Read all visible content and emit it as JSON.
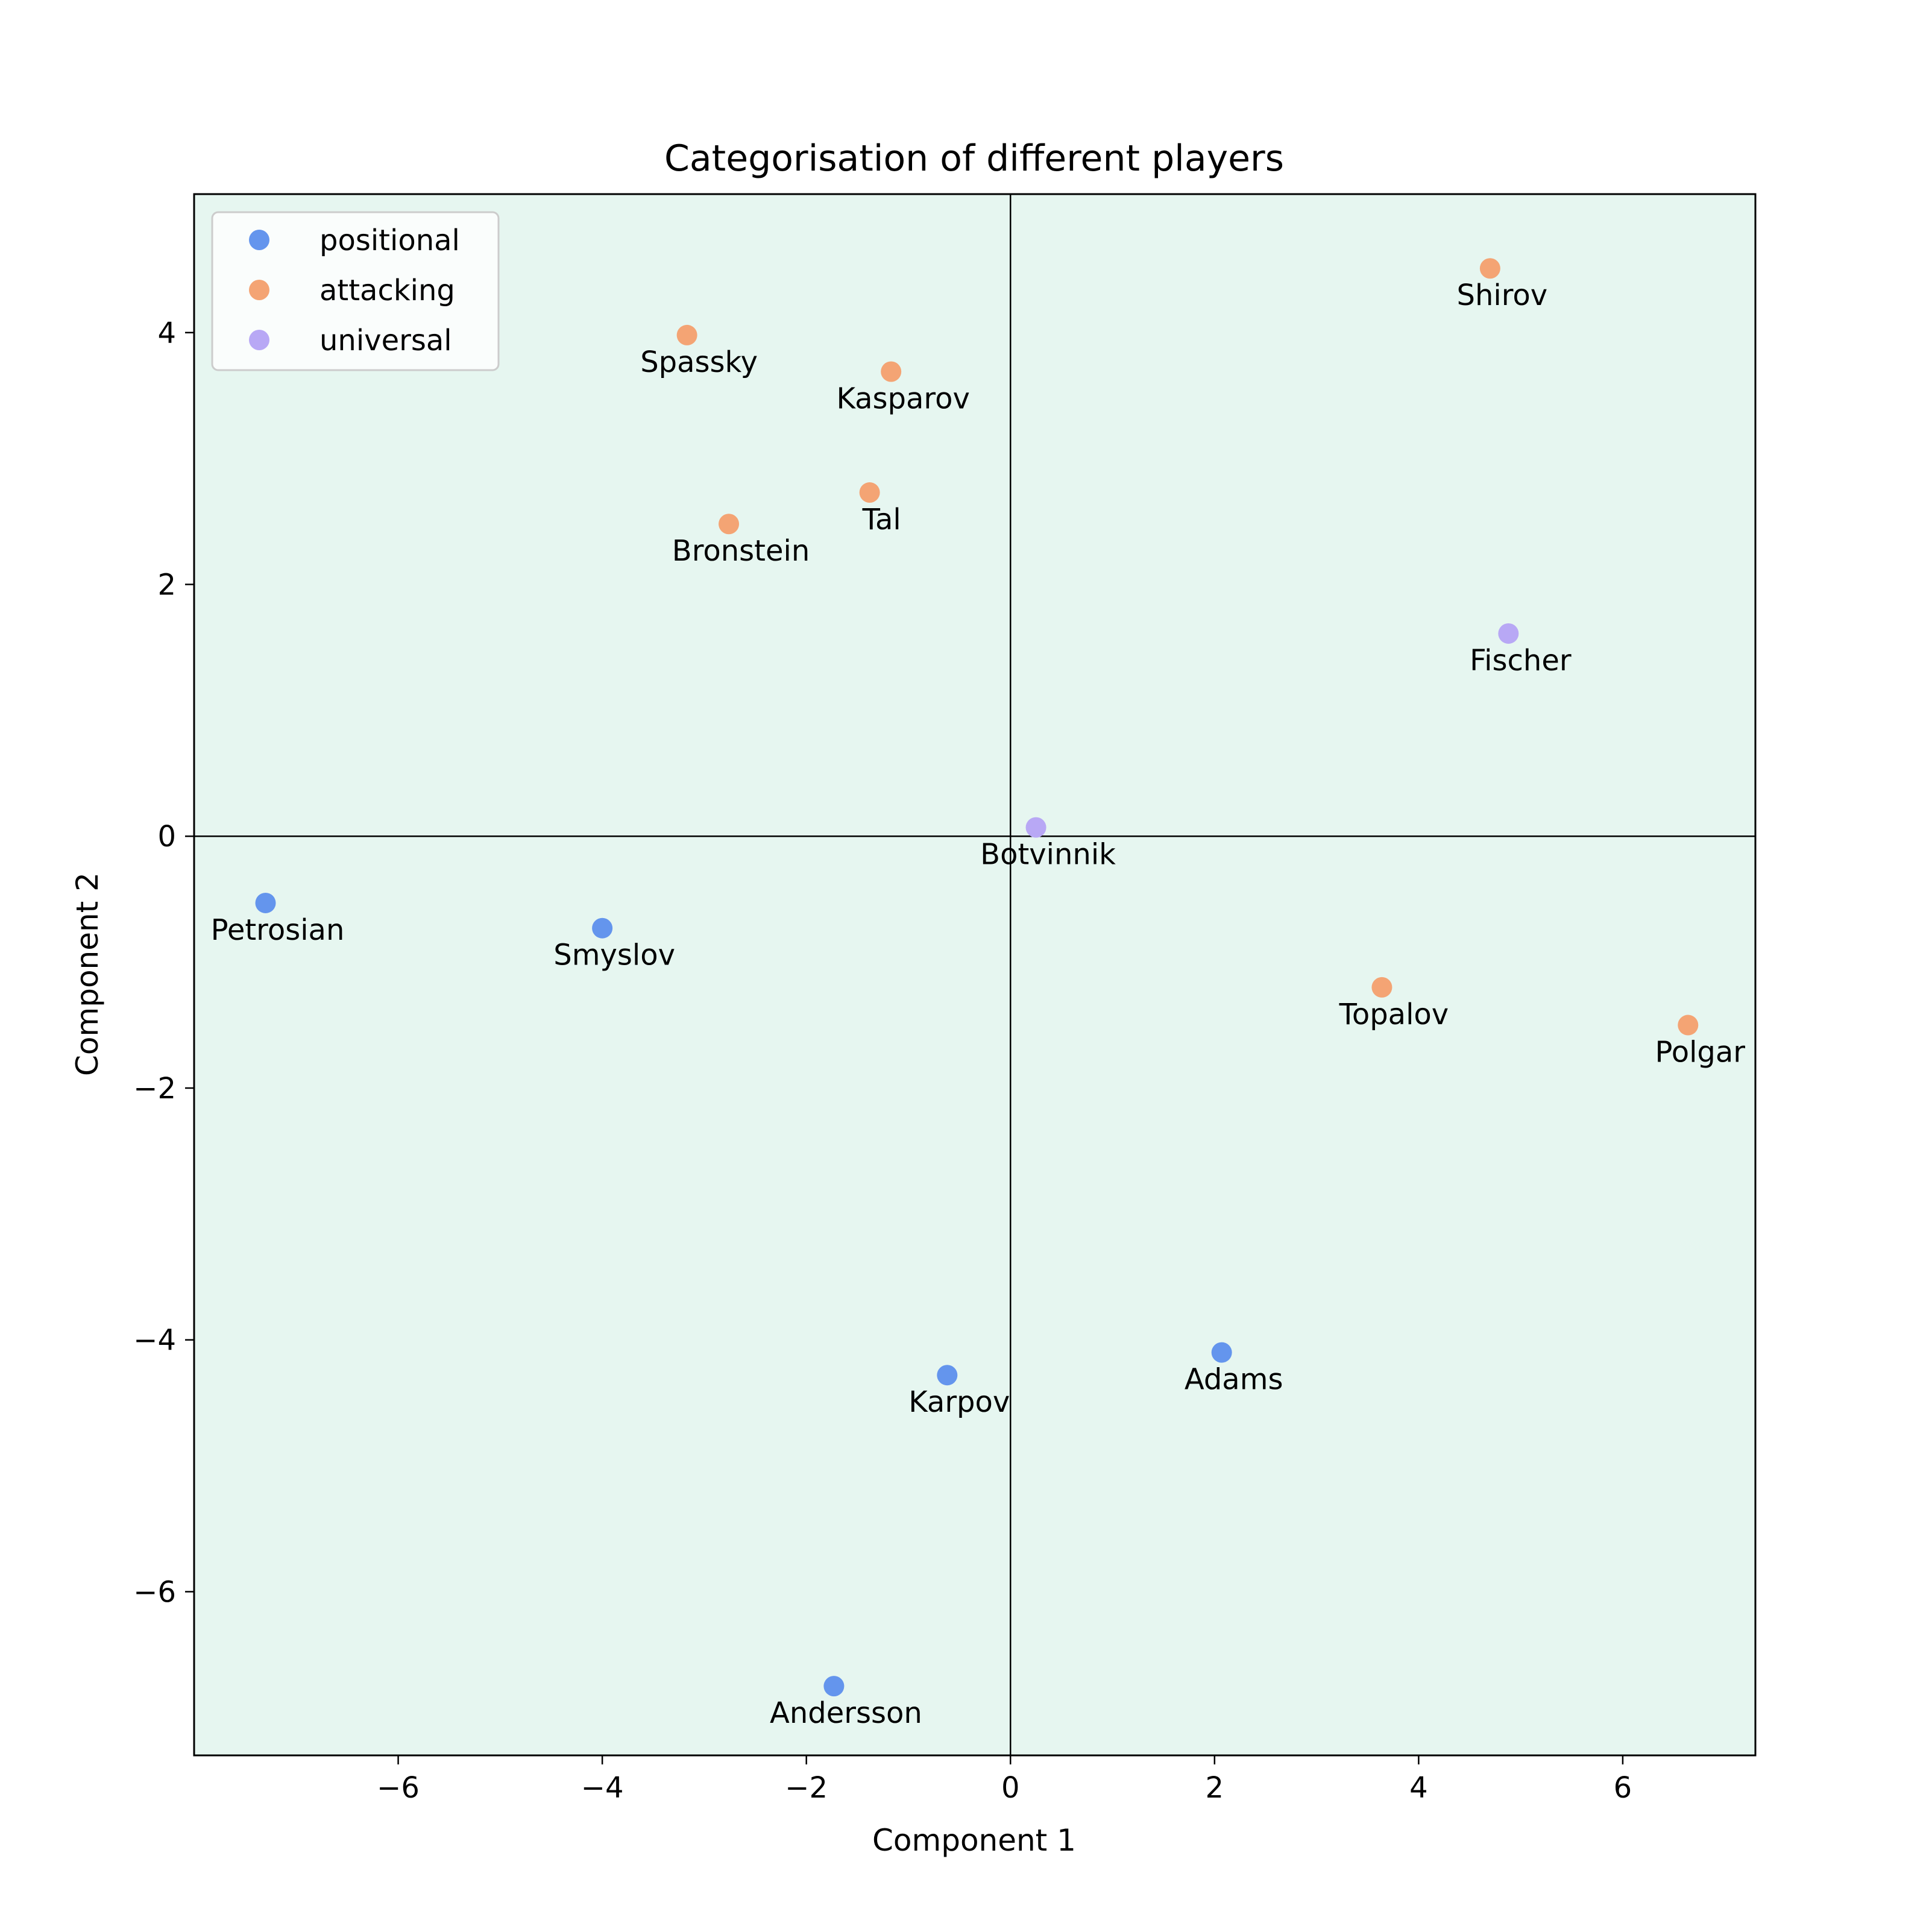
{
  "chart_data": {
    "type": "scatter",
    "title": "Categorisation of different players",
    "xlabel": "Component 1",
    "ylabel": "Component 2",
    "xlim": [
      -8.0,
      7.3
    ],
    "ylim": [
      -7.3,
      5.1
    ],
    "x_ticks": [
      -6,
      -4,
      -2,
      0,
      2,
      4,
      6
    ],
    "y_ticks": [
      -6,
      -4,
      -2,
      0,
      2,
      4
    ],
    "x_tick_labels": [
      "−6",
      "−4",
      "−2",
      "0",
      "2",
      "4",
      "6"
    ],
    "y_tick_labels": [
      "−6",
      "−4",
      "−2",
      "0",
      "2",
      "4"
    ],
    "grid": false,
    "zero_lines": true,
    "legend_position": "top-left",
    "background_color": "#e6f6f0",
    "series": [
      {
        "name": "positional",
        "color": "#6495ed",
        "points": [
          {
            "label": "Petrosian",
            "x": -7.3,
            "y": -0.53
          },
          {
            "label": "Smyslov",
            "x": -4.0,
            "y": -0.73
          },
          {
            "label": "Karpov",
            "x": -0.62,
            "y": -4.28
          },
          {
            "label": "Adams",
            "x": 2.07,
            "y": -4.1
          },
          {
            "label": "Andersson",
            "x": -1.73,
            "y": -6.75
          }
        ]
      },
      {
        "name": "attacking",
        "color": "#f4a474",
        "points": [
          {
            "label": "Spassky",
            "x": -3.17,
            "y": 3.98
          },
          {
            "label": "Kasparov",
            "x": -1.17,
            "y": 3.69
          },
          {
            "label": "Tal",
            "x": -1.38,
            "y": 2.73
          },
          {
            "label": "Bronstein",
            "x": -2.76,
            "y": 2.48
          },
          {
            "label": "Shirov",
            "x": 4.7,
            "y": 4.51
          },
          {
            "label": "Topalov",
            "x": 3.64,
            "y": -1.2
          },
          {
            "label": "Polgar",
            "x": 6.64,
            "y": -1.5
          }
        ]
      },
      {
        "name": "universal",
        "color": "#b8a8f5",
        "points": [
          {
            "label": "Fischer",
            "x": 4.88,
            "y": 1.61
          },
          {
            "label": "Botvinnik",
            "x": 0.25,
            "y": 0.07
          }
        ]
      }
    ]
  }
}
